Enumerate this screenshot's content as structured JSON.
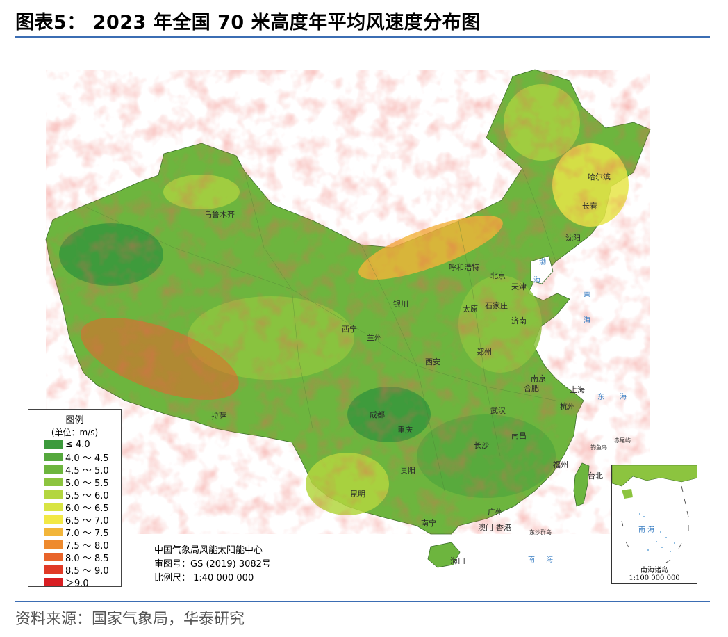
{
  "figure": {
    "title": "图表5： 2023 年全国 70 米高度年平均风速度分布图",
    "source": "资料来源：国家气象局，华泰研究"
  },
  "legend": {
    "title": "图例",
    "unit": "(单位：m/s)",
    "items": [
      {
        "label": "≤ 4.0",
        "color": "#3c9a3c"
      },
      {
        "label": "4.0 ～ 4.5",
        "color": "#55a83d"
      },
      {
        "label": "4.5 ～ 5.0",
        "color": "#6db53e"
      },
      {
        "label": "5.0 ～ 5.5",
        "color": "#8cc43f"
      },
      {
        "label": "5.5 ～ 6.0",
        "color": "#b3d640"
      },
      {
        "label": "6.0 ～ 6.5",
        "color": "#d8e443"
      },
      {
        "label": "6.5 ～ 7.0",
        "color": "#f2e845"
      },
      {
        "label": "7.0 ～ 7.5",
        "color": "#f2b53a"
      },
      {
        "label": "7.5 ～ 8.0",
        "color": "#ee8a2e"
      },
      {
        "label": "8.0 ～ 8.5",
        "color": "#e8642a"
      },
      {
        "label": "8.5 ～ 9.0",
        "color": "#e03a26"
      },
      {
        "label": "＞9.0",
        "color": "#d81e22"
      }
    ]
  },
  "credits": {
    "org": "中国气象局风能太阳能中心",
    "approval": "审图号：GS (2019) 3082号",
    "scale": "比例尺： 1:40 000 000"
  },
  "inset": {
    "label1": "南海诸岛",
    "label2": "1:100 000 000",
    "sea": "南  海"
  },
  "cities": [
    {
      "name": "乌鲁木齐"
    },
    {
      "name": "哈尔滨"
    },
    {
      "name": "长春"
    },
    {
      "name": "沈阳"
    },
    {
      "name": "呼和浩特"
    },
    {
      "name": "北京"
    },
    {
      "name": "天津"
    },
    {
      "name": "石家庄"
    },
    {
      "name": "太原"
    },
    {
      "name": "银川"
    },
    {
      "name": "济南"
    },
    {
      "name": "西宁"
    },
    {
      "name": "兰州"
    },
    {
      "name": "郑州"
    },
    {
      "name": "西安"
    },
    {
      "name": "南京"
    },
    {
      "name": "合肥"
    },
    {
      "name": "上海"
    },
    {
      "name": "杭州"
    },
    {
      "name": "拉萨"
    },
    {
      "name": "成都"
    },
    {
      "name": "重庆"
    },
    {
      "name": "武汉"
    },
    {
      "name": "南昌"
    },
    {
      "name": "长沙"
    },
    {
      "name": "福州"
    },
    {
      "name": "台北"
    },
    {
      "name": "贵阳"
    },
    {
      "name": "昆明"
    },
    {
      "name": "广州"
    },
    {
      "name": "南宁"
    },
    {
      "name": "澳门"
    },
    {
      "name": "香港"
    },
    {
      "name": "海口"
    }
  ],
  "seas": [
    "渤",
    "海",
    "黄",
    "海",
    "东",
    "海",
    "南",
    "海",
    "钓鱼岛",
    "赤尾屿",
    "东沙群岛"
  ]
}
